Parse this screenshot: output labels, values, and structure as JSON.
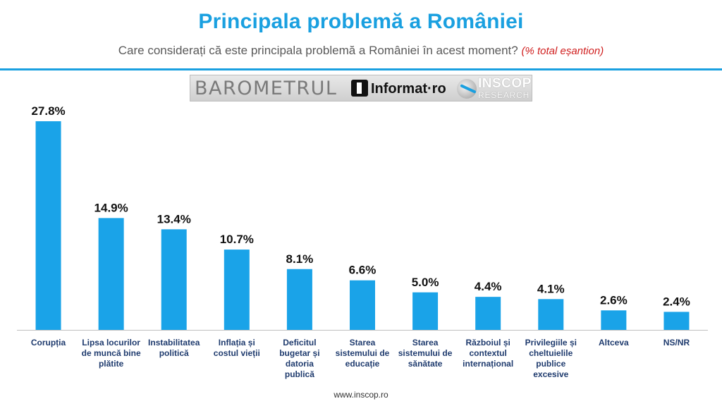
{
  "header": {
    "title": "Principala problemă a României",
    "subtitle": "Care considerați că este principala problemă a României în acest moment?",
    "subtitle_note": "(% total eșantion)"
  },
  "logos": {
    "barometrul": "BAROMETRUL",
    "informat": "Informat",
    "informat_dot": "·ro",
    "inscop": "INSCOP",
    "research": "RESEARCH"
  },
  "footer": {
    "url": "www.inscop.ro"
  },
  "colors": {
    "bar": "#1aa3e8",
    "accent": "#1aa0e0"
  },
  "chart_data": {
    "type": "bar",
    "categories": [
      [
        "Corupția"
      ],
      [
        "Lipsa locurilor",
        "de muncă bine",
        "plătite"
      ],
      [
        "Instabilitatea",
        "politică"
      ],
      [
        "Inflația și",
        "costul vieții"
      ],
      [
        "Deficitul",
        "bugetar și",
        "datoria",
        "publică"
      ],
      [
        "Starea",
        "sistemului de",
        "educație"
      ],
      [
        "Starea",
        "sistemului de",
        "sănătate"
      ],
      [
        "Războiul și",
        "contextul",
        "internațional"
      ],
      [
        "Privilegiile și",
        "cheltuielile",
        "publice",
        "excesive"
      ],
      [
        "Altceva"
      ],
      [
        "NS/NR"
      ]
    ],
    "values": [
      27.8,
      14.9,
      13.4,
      10.7,
      8.1,
      6.6,
      5.0,
      4.4,
      4.1,
      2.6,
      2.4
    ],
    "value_labels": [
      "27.8%",
      "14.9%",
      "13.4%",
      "10.7%",
      "8.1%",
      "6.6%",
      "5.0%",
      "4.4%",
      "4.1%",
      "2.6%",
      "2.4%"
    ],
    "ylim": [
      0,
      27.8
    ],
    "grid": false,
    "legend": "none"
  }
}
